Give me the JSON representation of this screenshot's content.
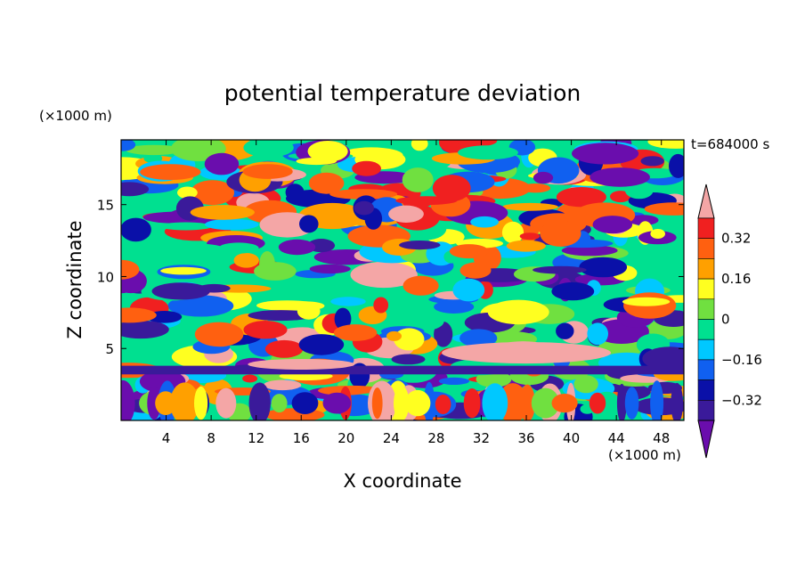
{
  "chart_data": {
    "type": "heatmap",
    "title": "potential temperature deviation",
    "xlabel": "X coordinate",
    "ylabel": "Z coordinate",
    "x_unit": "(×1000 m)",
    "y_unit": "(×1000 m)",
    "time_label": "t=684000 s",
    "xlim": [
      0,
      50
    ],
    "ylim": [
      0,
      19.5
    ],
    "x_ticks": [
      4,
      8,
      12,
      16,
      20,
      24,
      28,
      32,
      36,
      40,
      44,
      48
    ],
    "y_ticks": [
      5,
      10,
      15
    ],
    "colorbar": {
      "levels": [
        -0.4,
        -0.32,
        -0.24,
        -0.16,
        -0.08,
        0,
        0.08,
        0.16,
        0.24,
        0.32,
        0.4
      ],
      "tick_labels": [
        "0.32",
        "0.16",
        "0",
        "−0.16",
        "−0.32"
      ],
      "tick_values": [
        0.32,
        0.16,
        0,
        -0.16,
        -0.32
      ],
      "colors": [
        "#6a0dad",
        "#3a1a9a",
        "#0a10a8",
        "#1060f0",
        "#00c8ff",
        "#00e090",
        "#70e040",
        "#ffff20",
        "#ffa000",
        "#ff6010",
        "#f02020",
        "#f4a6a6"
      ],
      "extend": "both"
    }
  }
}
